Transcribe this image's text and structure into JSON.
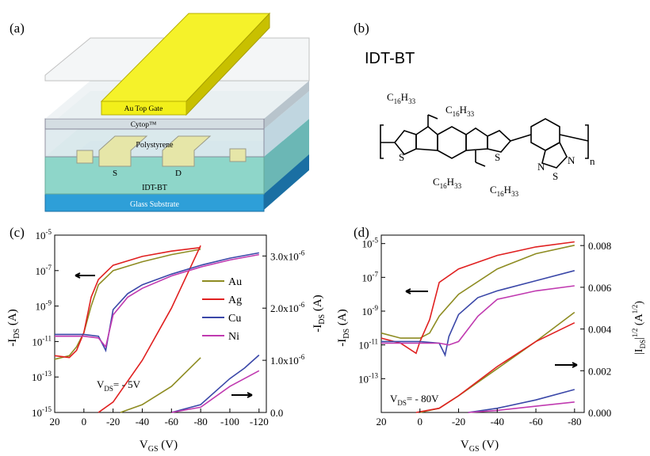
{
  "panels": {
    "a": "(a)",
    "b": "(b)",
    "c": "(c)",
    "d": "(d)"
  },
  "device": {
    "gate": "Au Top Gate",
    "cytop": "Cytop™",
    "polystyrene": "Polystyrene",
    "source": "S",
    "drain": "D",
    "semiconductor": "IDT-BT",
    "substrate": "Glass Substrate",
    "colors": {
      "gate": "#f2ef1a",
      "substrate": "#2e9fd8",
      "semiconductor": "#7fd0c6",
      "layer": "#cfe0e8"
    }
  },
  "molecule": {
    "name": "IDT-BT",
    "subscript_n": "n",
    "alkyl": "C",
    "alkyl_sub1": "16",
    "alkyl_mid": "H",
    "alkyl_sub2": "33",
    "atoms": {
      "S": "S",
      "N": "N"
    }
  },
  "chart_data": [
    {
      "type": "line",
      "panel": "c",
      "xlabel_main": "V",
      "xlabel_sub": "GS",
      "xlabel_unit": " (V)",
      "ylabel_left_main": "-I",
      "ylabel_left_sub": "DS",
      "ylabel_left_unit": " (A)",
      "ylabel_right_main": "-I",
      "ylabel_right_sub": "DS",
      "ylabel_right_unit": " (A)",
      "annotation_main": "V",
      "annotation_sub": "DS",
      "annotation_value": "= - 5V",
      "xlim": [
        20,
        -125
      ],
      "ylim_left_log": [
        -15,
        -5
      ],
      "ylim_right": [
        0,
        3.4e-06
      ],
      "x_ticks": [
        "20",
        "0",
        "-20",
        "-40",
        "-60",
        "-80",
        "-100",
        "-120"
      ],
      "y_left_ticks": [
        "10^-15",
        "10^-13",
        "10^-11",
        "10^-9",
        "10^-7",
        "10^-5"
      ],
      "y_right_ticks": [
        "0.0",
        "1.0x10^-6",
        "2.0x10^-6",
        "3.0x10^-6"
      ],
      "legend_position": "right-middle",
      "series": [
        {
          "name": "Au",
          "color": "#8e8c22",
          "log_x": [
            20,
            10,
            5,
            0,
            -5,
            -10,
            -20,
            -40,
            -60,
            -80
          ],
          "log_y": [
            -12,
            -11.8,
            -11.3,
            -10.5,
            -9,
            -7.8,
            -7,
            -6.5,
            -6.1,
            -5.8
          ],
          "lin_x": [
            -25,
            -40,
            -60,
            -80
          ],
          "lin_y": [
            0,
            1.5e-07,
            5e-07,
            1.05e-06
          ]
        },
        {
          "name": "Ag",
          "color": "#e02020",
          "log_x": [
            20,
            10,
            5,
            0,
            -5,
            -10,
            -20,
            -40,
            -60,
            -80
          ],
          "log_y": [
            -11.8,
            -11.9,
            -11.5,
            -10.5,
            -8.5,
            -7.5,
            -6.7,
            -6.2,
            -5.9,
            -5.7
          ],
          "lin_x": [
            -10,
            -20,
            -40,
            -60,
            -80
          ],
          "lin_y": [
            0,
            2e-07,
            1e-06,
            2e-06,
            3.2e-06
          ]
        },
        {
          "name": "Cu",
          "color": "#3a47a8",
          "log_x": [
            20,
            0,
            -10,
            -15,
            -20,
            -30,
            -40,
            -60,
            -80,
            -100,
            -120
          ],
          "log_y": [
            -10.6,
            -10.6,
            -10.7,
            -11.5,
            -9.2,
            -8.3,
            -7.8,
            -7.2,
            -6.7,
            -6.3,
            -6.0
          ],
          "lin_x": [
            -60,
            -80,
            -100,
            -110,
            -120
          ],
          "lin_y": [
            0,
            1.5e-07,
            6.5e-07,
            8.5e-07,
            1.1e-06
          ]
        },
        {
          "name": "Ni",
          "color": "#c03ab0",
          "log_x": [
            20,
            0,
            -10,
            -15,
            -20,
            -30,
            -40,
            -60,
            -80,
            -100,
            -120
          ],
          "log_y": [
            -10.7,
            -10.7,
            -10.8,
            -11.3,
            -9.5,
            -8.5,
            -8,
            -7.3,
            -6.8,
            -6.4,
            -6.1
          ],
          "lin_x": [
            -60,
            -80,
            -100,
            -120
          ],
          "lin_y": [
            0,
            1e-07,
            5e-07,
            8e-07
          ]
        }
      ]
    },
    {
      "type": "line",
      "panel": "d",
      "xlabel_main": "V",
      "xlabel_sub": "GS",
      "xlabel_unit": " (V)",
      "ylabel_left_main": "-I",
      "ylabel_left_sub": "DS",
      "ylabel_left_unit": " (A)",
      "ylabel_right": "|I",
      "ylabel_right_sub": "DS",
      "ylabel_right_tail": "|",
      "ylabel_right_sup": "1/2",
      "ylabel_right_unit": " (A",
      "ylabel_right_unit_sup": "1/2",
      "ylabel_right_close": ")",
      "annotation_main": "V",
      "annotation_sub": "DS",
      "annotation_value": "= - 80V",
      "xlim": [
        20,
        -85
      ],
      "ylim_left_log": [
        -15,
        -4.5
      ],
      "ylim_right": [
        0,
        0.0085
      ],
      "x_ticks": [
        "20",
        "0",
        "-20",
        "-40",
        "-60",
        "-80"
      ],
      "y_left_ticks": [
        "10^-13",
        "10^-11",
        "10^-9",
        "10^-7",
        "10^-5"
      ],
      "y_right_ticks": [
        "0.000",
        "0.002",
        "0.004",
        "0.006",
        "0.008"
      ],
      "series": [
        {
          "name": "Au",
          "color": "#8e8c22",
          "log_x": [
            20,
            10,
            0,
            -5,
            -10,
            -20,
            -40,
            -60,
            -80
          ],
          "log_y": [
            -10.3,
            -10.6,
            -10.6,
            -10.3,
            -9.3,
            -8,
            -6.5,
            -5.6,
            -5.1
          ],
          "lin_x": [
            0,
            -10,
            -20,
            -40,
            -60,
            -80
          ],
          "lin_y": [
            0,
            0.0002,
            0.0008,
            0.0021,
            0.0034,
            0.0048
          ]
        },
        {
          "name": "Ag",
          "color": "#e02020",
          "log_x": [
            20,
            10,
            2,
            0,
            -5,
            -10,
            -20,
            -40,
            -60,
            -80
          ],
          "log_y": [
            -10.6,
            -10.9,
            -11.5,
            -10.8,
            -9.5,
            -7.3,
            -6.5,
            -5.7,
            -5.2,
            -4.9
          ],
          "lin_x": [
            2,
            -10,
            -20,
            -40,
            -60,
            -80
          ],
          "lin_y": [
            0,
            0.0002,
            0.0008,
            0.0022,
            0.0034,
            0.0043
          ]
        },
        {
          "name": "Cu",
          "color": "#3a47a8",
          "log_x": [
            20,
            0,
            -10,
            -13,
            -15,
            -20,
            -30,
            -40,
            -60,
            -80
          ],
          "log_y": [
            -10.8,
            -10.8,
            -10.9,
            -11.6,
            -10.5,
            -9.2,
            -8.2,
            -7.8,
            -7.2,
            -6.6
          ],
          "lin_x": [
            -25,
            -40,
            -60,
            -80
          ],
          "lin_y": [
            0,
            0.0002,
            0.0006,
            0.0011
          ]
        },
        {
          "name": "Ni",
          "color": "#c03ab0",
          "log_x": [
            20,
            0,
            -10,
            -15,
            -20,
            -30,
            -40,
            -60,
            -80
          ],
          "log_y": [
            -10.9,
            -10.9,
            -10.9,
            -11,
            -10.8,
            -9.3,
            -8.3,
            -7.8,
            -7.5
          ],
          "lin_x": [
            -25,
            -40,
            -60,
            -80
          ],
          "lin_y": [
            0,
            0.0001,
            0.0003,
            0.0005
          ]
        }
      ]
    }
  ]
}
